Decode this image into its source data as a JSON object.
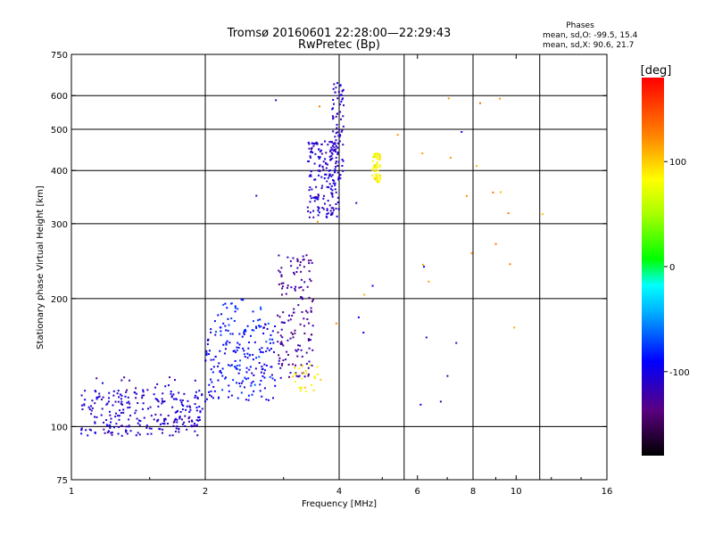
{
  "chart_data": {
    "type": "scatter",
    "title": "Tromsø 20160601 22:28:00—22:29:43",
    "subtitle": "RwPretec (Bp)",
    "xlabel": "Frequency [MHz]",
    "ylabel": "Stationary phase Virtual Height [km]",
    "x_scale": "log",
    "y_scale": "log",
    "xlim": [
      1,
      16
    ],
    "ylim": [
      75,
      750
    ],
    "x_ticks": [
      1,
      2,
      4,
      6,
      8,
      10,
      16
    ],
    "x_tick_labels": [
      "1",
      "2",
      "4",
      "6",
      "8",
      "10",
      "16"
    ],
    "y_ticks": [
      75,
      100,
      200,
      300,
      400,
      500,
      600,
      750
    ],
    "y_tick_labels": [
      "75",
      "100",
      "200",
      "300",
      "400",
      "500",
      "600",
      "750"
    ],
    "x_grid": [
      1,
      2,
      4,
      5.6,
      8,
      11.3
    ],
    "y_grid": [
      100,
      200,
      300,
      400,
      500,
      600
    ],
    "legend_title": "Phases",
    "legend_lines": [
      "mean, sd,O: -99.5, 15.4",
      "mean, sd,X:  90.6, 21.7"
    ],
    "colorbar": {
      "label": "[deg]",
      "range": [
        -180,
        180
      ],
      "ticks": [
        100,
        0,
        -100
      ],
      "tick_labels": [
        "100",
        "0",
        "-100"
      ]
    },
    "point_series": [
      {
        "name": "low-band trace 1",
        "phase": -110,
        "x_range": [
          1.05,
          1.95
        ],
        "y_range": [
          95,
          108
        ],
        "count": 120
      },
      {
        "name": "low-band trace 2",
        "phase": -105,
        "x_range": [
          1.05,
          2.05
        ],
        "y_range": [
          108,
          122
        ],
        "count": 110
      },
      {
        "name": "E-region scatter",
        "phase": -115,
        "x_range": [
          1.1,
          2.0
        ],
        "y_range": [
          98,
          135
        ],
        "count": 50
      },
      {
        "name": "mid-band trace",
        "phase": -95,
        "x_range": [
          2.0,
          2.9
        ],
        "y_range": [
          115,
          175
        ],
        "count": 150
      },
      {
        "name": "mid-band cyan",
        "phase": -80,
        "x_range": [
          2.1,
          2.8
        ],
        "y_range": [
          120,
          200
        ],
        "count": 70
      },
      {
        "name": "F1 purple",
        "phase": -125,
        "x_range": [
          2.9,
          3.5
        ],
        "y_range": [
          130,
          255
        ],
        "count": 150
      },
      {
        "name": "F2 blue cluster",
        "phase": -110,
        "x_range": [
          3.4,
          4.0
        ],
        "y_range": [
          310,
          470
        ],
        "count": 180
      },
      {
        "name": "F2 blue cusp",
        "phase": -110,
        "x_range": [
          3.85,
          4.1
        ],
        "y_range": [
          380,
          650
        ],
        "count": 70
      },
      {
        "name": "X-mode yellow cluster",
        "phase": 85,
        "x_range": [
          4.75,
          4.95
        ],
        "y_range": [
          375,
          440
        ],
        "count": 60
      },
      {
        "name": "X-mode yellow low",
        "phase": 90,
        "x_range": [
          3.1,
          3.65
        ],
        "y_range": [
          120,
          140
        ],
        "count": 25
      },
      {
        "name": "scattered orange",
        "phase": 120,
        "x_range": [
          3.5,
          12.5
        ],
        "y_range": [
          150,
          640
        ],
        "count": 22
      },
      {
        "name": "scattered blue",
        "phase": -105,
        "x_range": [
          2.6,
          8.0
        ],
        "y_range": [
          105,
          650
        ],
        "count": 14
      }
    ]
  }
}
